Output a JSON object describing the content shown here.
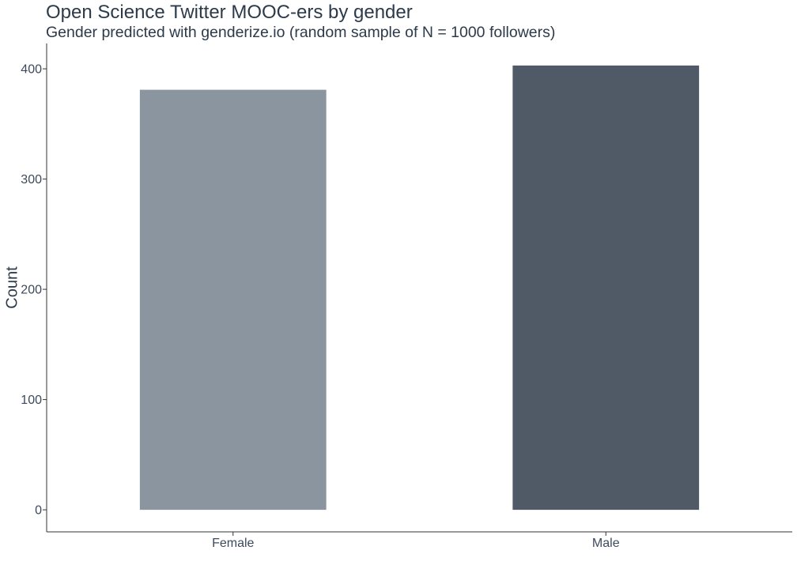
{
  "chart_data": {
    "type": "bar",
    "title": "Open Science Twitter MOOC-ers by gender",
    "subtitle": "Gender predicted with genderize.io (random sample of N = 1000 followers)",
    "xlabel": "",
    "ylabel": "Count",
    "categories": [
      "Female",
      "Male"
    ],
    "values": [
      381,
      403
    ],
    "colors": [
      "#8a959f",
      "#4f5a66"
    ],
    "ylim": [
      -20,
      423
    ],
    "yticks": [
      0,
      100,
      200,
      300,
      400
    ],
    "grid": false,
    "legend": "none"
  }
}
